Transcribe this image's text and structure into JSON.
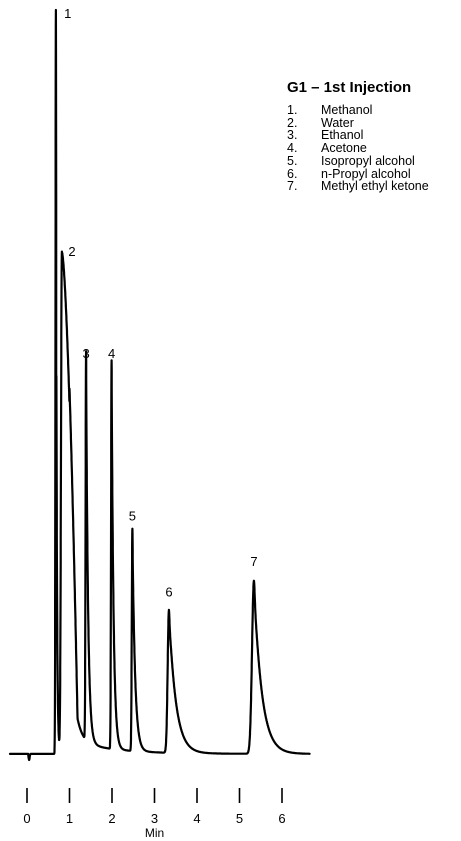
{
  "chart_data": {
    "type": "line",
    "title": "G1 – 1st Injection",
    "xlabel": "Min",
    "ylabel": "",
    "xlim": [
      -0.4,
      6.6
    ],
    "ylim": [
      0,
      100
    ],
    "x_ticks": [
      "0",
      "1",
      "2",
      "3",
      "4",
      "5",
      "6"
    ],
    "grid": false,
    "legend_position": "top-right",
    "baseline": 1.6,
    "injection_time": 0.05,
    "injection_dip": 0.8,
    "peaks": [
      {
        "label": "1",
        "name": "Methanol",
        "rt": 0.68,
        "height": 100,
        "label_x": 0.96,
        "label_y": 100
      },
      {
        "label": "2",
        "name": "Water",
        "rt": 0.82,
        "height": 68,
        "label_x": 1.06,
        "label_y": 68.5
      },
      {
        "label": "3",
        "name": "Ethanol",
        "rt": 1.39,
        "height": 53,
        "label_x": 1.39,
        "label_y": 55
      },
      {
        "label": "4",
        "name": "Acetone",
        "rt": 1.99,
        "height": 53,
        "label_x": 1.99,
        "label_y": 55
      },
      {
        "label": "5",
        "name": "Isopropyl alcohol",
        "rt": 2.48,
        "height": 31,
        "label_x": 2.48,
        "label_y": 33.5
      },
      {
        "label": "6",
        "name": "n-Propyl alcohol",
        "rt": 3.34,
        "height": 20.5,
        "label_x": 3.34,
        "label_y": 23.5
      },
      {
        "label": "7",
        "name": "Methyl ethyl ketone",
        "rt": 5.34,
        "height": 24.5,
        "label_x": 5.34,
        "label_y": 27.5
      }
    ]
  },
  "legend": {
    "title": "G1 – 1st Injection",
    "items": [
      {
        "num": "1.",
        "name": "Methanol"
      },
      {
        "num": "2.",
        "name": "Water"
      },
      {
        "num": "3.",
        "name": "Ethanol"
      },
      {
        "num": "4.",
        "name": "Acetone"
      },
      {
        "num": "5.",
        "name": "Isopropyl alcohol"
      },
      {
        "num": "6.",
        "name": "n-Propyl alcohol"
      },
      {
        "num": "7.",
        "name": "Methyl ethyl ketone"
      }
    ]
  }
}
